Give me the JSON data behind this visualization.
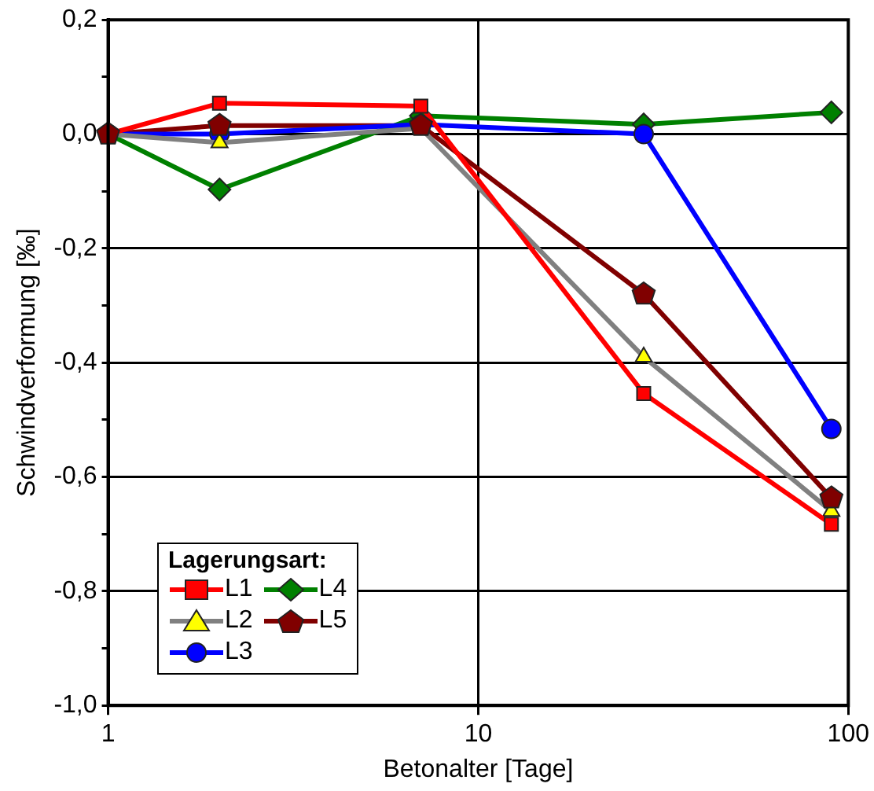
{
  "chart_data": {
    "type": "line",
    "xlabel": "Betonalter [Tage]",
    "ylabel": "Schwindverformung [‰]",
    "legend_title": "Lagerungsart:",
    "log": "x",
    "x": [
      1,
      2,
      7,
      28,
      90
    ],
    "series": [
      {
        "name": "L1",
        "color": "#ff0000",
        "marker": "square",
        "values": [
          0,
          0.054,
          0.049,
          -0.454,
          -0.683
        ]
      },
      {
        "name": "L2",
        "color": "#808080",
        "marker": "triangle",
        "values": [
          0,
          -0.015,
          0.01,
          -0.39,
          -0.66
        ]
      },
      {
        "name": "L3",
        "color": "#0000ff",
        "marker": "circle",
        "values": [
          0,
          0,
          0.017,
          0,
          -0.516
        ]
      },
      {
        "name": "L4",
        "color": "#008000",
        "marker": "diamond",
        "values": [
          0,
          -0.097,
          0.032,
          0.017,
          0.038
        ]
      },
      {
        "name": "L5",
        "color": "#800000",
        "marker": "star",
        "values": [
          0,
          0.015,
          0.015,
          -0.28,
          -0.637
        ]
      }
    ],
    "xlim": [
      1,
      100
    ],
    "xticks": [
      1,
      10,
      100
    ],
    "ylim": [
      -1,
      0.2
    ],
    "yticks": [
      {
        "value": -1,
        "label": "-1,0"
      },
      {
        "value": -0.9,
        "label": null
      },
      {
        "value": -0.8,
        "label": "-0,8"
      },
      {
        "value": -0.7,
        "label": null
      },
      {
        "value": -0.6,
        "label": "-0,6"
      },
      {
        "value": -0.5,
        "label": null
      },
      {
        "value": -0.4,
        "label": "-0,4"
      },
      {
        "value": -0.3,
        "label": null
      },
      {
        "value": -0.2,
        "label": "-0,2"
      },
      {
        "value": -0.1,
        "label": null
      },
      {
        "value": 0,
        "label": "0,0"
      },
      {
        "value": 0.1,
        "label": null
      },
      {
        "value": 0.2,
        "label": "0,2"
      }
    ],
    "grid": true,
    "legend": "bottom left",
    "line_style": "solid"
  }
}
